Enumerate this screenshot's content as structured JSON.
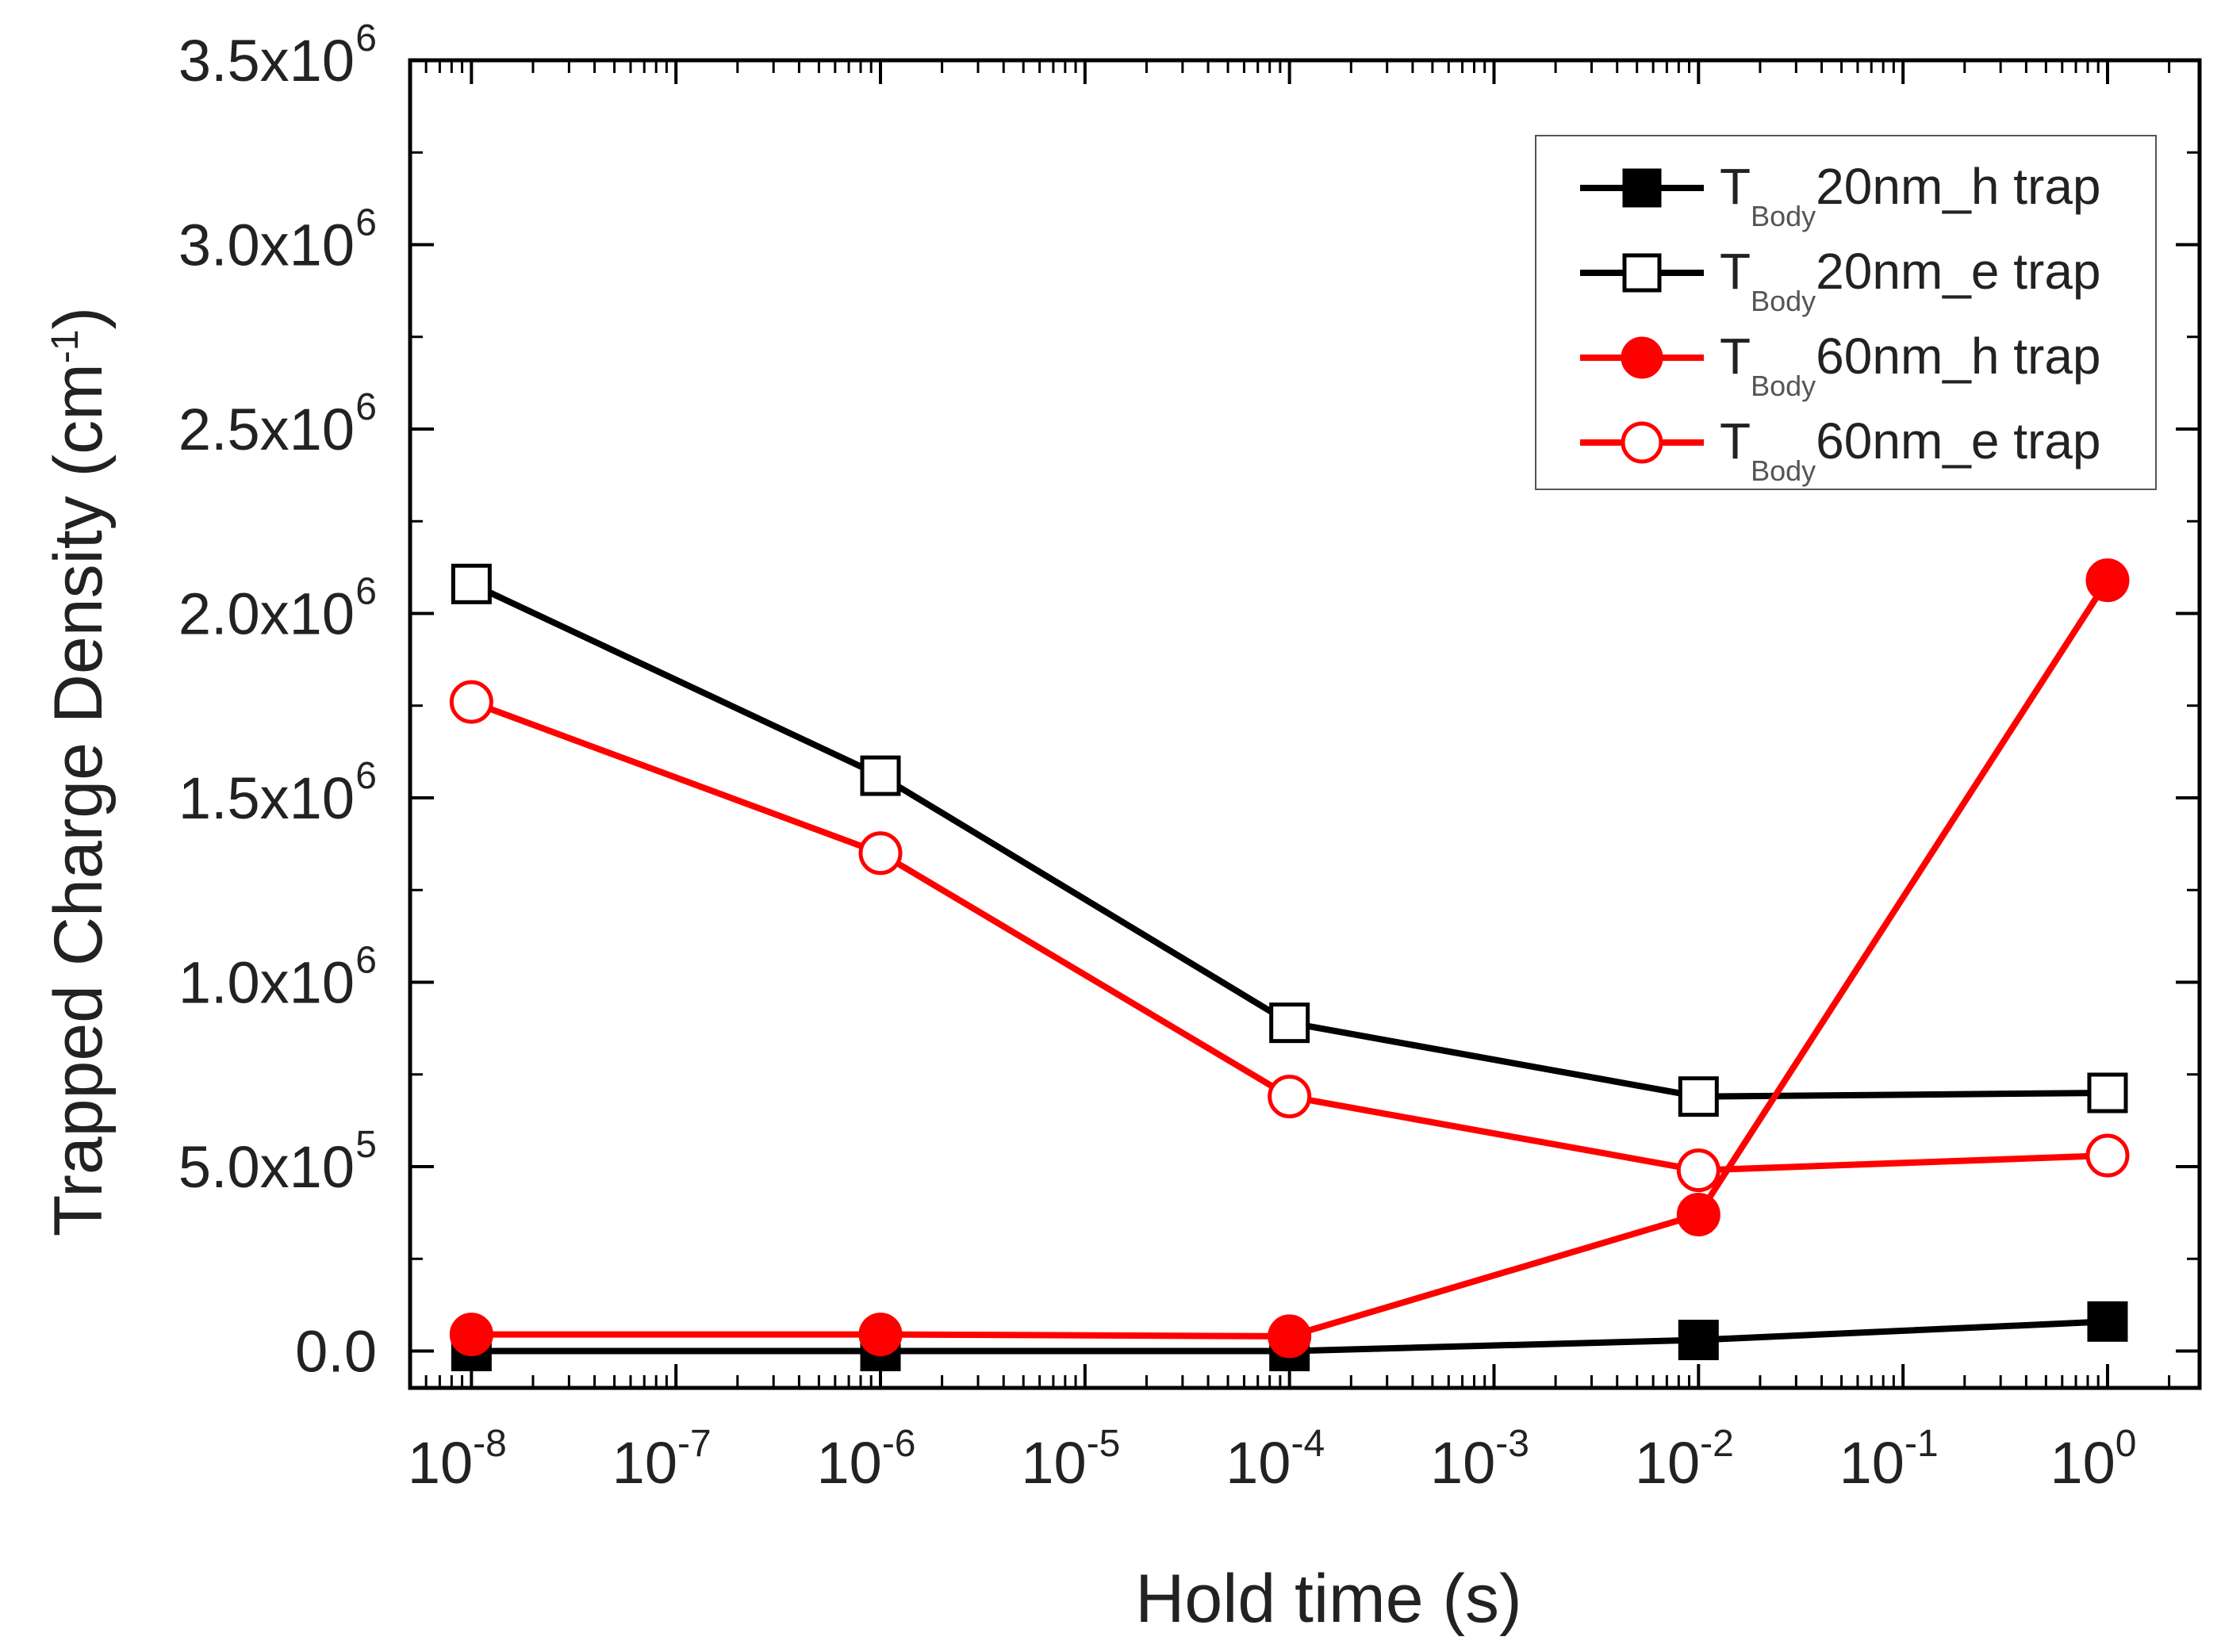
{
  "chart_data": {
    "type": "line",
    "xscale": "log",
    "xlabel": "Hold time (s)",
    "ylabel": "Trapped Charge Density (cm",
    "ylabel_sup": "-1",
    "ylabel_close": ")",
    "xlim_exp": [
      -8.3,
      0.45
    ],
    "ylim": [
      -100000,
      3500000
    ],
    "x": [
      1e-08,
      1e-06,
      0.0001,
      0.01,
      1
    ],
    "x_ticks": [
      {
        "exp": -8,
        "base": "10",
        "sup": "-8"
      },
      {
        "exp": -7,
        "base": "10",
        "sup": "-7"
      },
      {
        "exp": -6,
        "base": "10",
        "sup": "-6"
      },
      {
        "exp": -5,
        "base": "10",
        "sup": "-5"
      },
      {
        "exp": -4,
        "base": "10",
        "sup": "-4"
      },
      {
        "exp": -3,
        "base": "10",
        "sup": "-3"
      },
      {
        "exp": -2,
        "base": "10",
        "sup": "-2"
      },
      {
        "exp": -1,
        "base": "10",
        "sup": "-1"
      },
      {
        "exp": 0,
        "base": "10",
        "sup": "0"
      }
    ],
    "y_ticks": [
      {
        "value": 0,
        "label": "0.0",
        "sup": ""
      },
      {
        "value": 500000,
        "label": "5.0x10",
        "sup": "5"
      },
      {
        "value": 1000000,
        "label": "1.0x10",
        "sup": "6"
      },
      {
        "value": 1500000,
        "label": "1.5x10",
        "sup": "6"
      },
      {
        "value": 2000000,
        "label": "2.0x10",
        "sup": "6"
      },
      {
        "value": 2500000,
        "label": "2.5x10",
        "sup": "6"
      },
      {
        "value": 3000000,
        "label": "3.0x10",
        "sup": "6"
      },
      {
        "value": 3500000,
        "label": "3.5x10",
        "sup": "6"
      }
    ],
    "legend_position": "top-right",
    "series": [
      {
        "name": "T_Body 20nm_h trap",
        "prefix": "T",
        "sub": "Body",
        "suffix": "20nm_h trap",
        "color": "#000000",
        "marker": "square",
        "filled": true,
        "values": [
          0,
          0,
          0,
          30000,
          80000
        ]
      },
      {
        "name": "T_Body 20nm_e trap",
        "prefix": "T",
        "sub": "Body",
        "suffix": "20nm_e trap",
        "color": "#000000",
        "marker": "square",
        "filled": false,
        "values": [
          2080000,
          1560000,
          890000,
          690000,
          700000
        ]
      },
      {
        "name": "T_Body 60nm_h trap",
        "prefix": "T",
        "sub": "Body",
        "suffix": "60nm_h trap",
        "color": "#ff0000",
        "marker": "circle",
        "filled": true,
        "values": [
          45000,
          45000,
          40000,
          370000,
          2090000
        ]
      },
      {
        "name": "T_Body 60nm_e trap",
        "prefix": "T",
        "sub": "Body",
        "suffix": "60nm_e trap",
        "color": "#ff0000",
        "marker": "circle",
        "filled": false,
        "values": [
          1760000,
          1350000,
          690000,
          490000,
          530000
        ]
      }
    ]
  }
}
